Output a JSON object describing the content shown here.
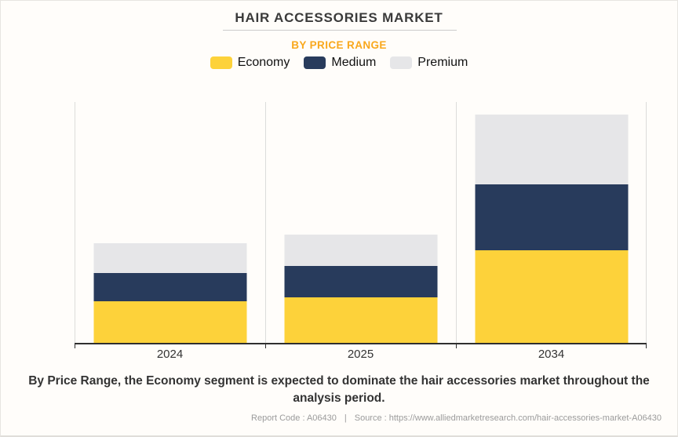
{
  "header": {
    "title": "HAIR ACCESSORIES MARKET",
    "subtitle": "BY PRICE RANGE",
    "subtitle_color": "#F9A81D"
  },
  "chart_data": {
    "type": "bar",
    "stacked": true,
    "title": "HAIR ACCESSORIES MARKET",
    "subtitle": "BY PRICE RANGE",
    "categories": [
      "2024",
      "2025",
      "2034"
    ],
    "series": [
      {
        "name": "Economy",
        "color": "#FDD23A",
        "values": [
          17.5,
          19.2,
          38.6
        ]
      },
      {
        "name": "Medium",
        "color": "#283B5C",
        "values": [
          11.7,
          13.0,
          27.3
        ]
      },
      {
        "name": "Premium",
        "color": "#E6E6E8",
        "values": [
          12.3,
          13.0,
          28.9
        ]
      }
    ],
    "xlabel": "",
    "ylabel": "",
    "ylim": [
      0,
      100
    ],
    "unit": "relative share of plot height (%); no y-axis labels shown in chart",
    "grid": "vertical category-boundary gridlines only",
    "legend_position": "top"
  },
  "colors": {
    "background": "#FFFDFA",
    "axis_line": "#2F2F2F",
    "gridline": "#DCDCDA",
    "title_text": "#3A3A3A",
    "footnote_text": "#333333",
    "footer_text": "#9B9B9B"
  },
  "footnote": "By Price Range, the Economy segment is expected to dominate the hair accessories market throughout the analysis period.",
  "footer": {
    "report_code": "Report Code : A06430",
    "separator": "|",
    "source": "Source : https://www.alliedmarketresearch.com/hair-accessories-market-A06430"
  }
}
